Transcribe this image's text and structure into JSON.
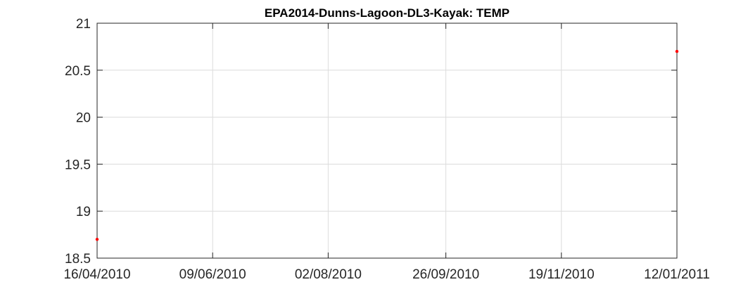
{
  "chart_data": {
    "type": "scatter",
    "title": "EPA2014-Dunns-Lagoon-DL3-Kayak: TEMP",
    "xlabel": "",
    "ylabel": "",
    "x_ticks": [
      "16/04/2010",
      "09/06/2010",
      "02/08/2010",
      "26/09/2010",
      "19/11/2010",
      "12/01/2011"
    ],
    "y_ticks": [
      "18.5",
      "19",
      "19.5",
      "20",
      "20.5",
      "21"
    ],
    "xlim": [
      "16/04/2010",
      "12/01/2011"
    ],
    "ylim": [
      18.5,
      21
    ],
    "grid": true,
    "series": [
      {
        "color": "#ff0000",
        "points": [
          {
            "x": "16/04/2010",
            "y": 18.7
          },
          {
            "x": "12/01/2011",
            "y": 20.7
          }
        ]
      }
    ]
  }
}
